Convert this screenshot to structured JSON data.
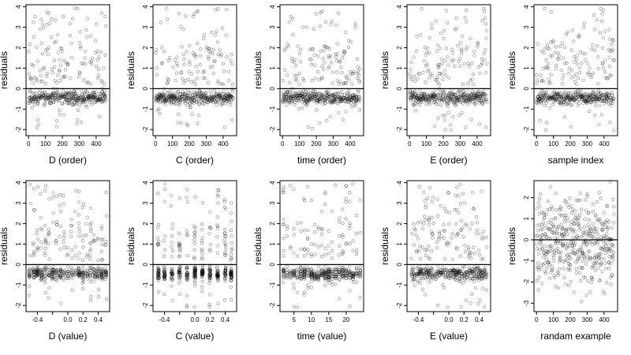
{
  "chart_data": [
    {
      "type": "scatter",
      "xlabel": "D (order)",
      "ylabel": "residuals",
      "xlim": [
        -15,
        480
      ],
      "ylim": [
        -2.3,
        4.1
      ],
      "xticks": [
        0,
        100,
        200,
        300,
        400
      ],
      "xtick_labels": [
        "0",
        "100",
        "200",
        "300",
        "400"
      ],
      "yticks": [
        -2,
        -1,
        0,
        1,
        2,
        3,
        4
      ],
      "ytick_labels": [
        "-2",
        "-1",
        "0",
        "1",
        "2",
        "3",
        "4"
      ],
      "hline": 0,
      "n_points": 460,
      "seed": 11
    },
    {
      "type": "scatter",
      "xlabel": "C (order)",
      "ylabel": "residuals",
      "xlim": [
        -15,
        480
      ],
      "ylim": [
        -2.3,
        4.1
      ],
      "xticks": [
        0,
        100,
        200,
        300,
        400
      ],
      "xtick_labels": [
        "0",
        "100",
        "200",
        "300",
        "400"
      ],
      "yticks": [
        -2,
        -1,
        0,
        1,
        2,
        3,
        4
      ],
      "ytick_labels": [
        "-2",
        "-1",
        "0",
        "1",
        "2",
        "3",
        "4"
      ],
      "hline": 0,
      "n_points": 460,
      "seed": 23
    },
    {
      "type": "scatter",
      "xlabel": "time (order)",
      "ylabel": "residuals",
      "xlim": [
        -15,
        480
      ],
      "ylim": [
        -2.3,
        4.1
      ],
      "xticks": [
        0,
        100,
        200,
        300,
        400
      ],
      "xtick_labels": [
        "0",
        "100",
        "200",
        "300",
        "400"
      ],
      "yticks": [
        -2,
        -1,
        0,
        1,
        2,
        3,
        4
      ],
      "ytick_labels": [
        "-2",
        "-1",
        "0",
        "1",
        "2",
        "3",
        "4"
      ],
      "hline": 0,
      "n_points": 460,
      "seed": 37
    },
    {
      "type": "scatter",
      "xlabel": "E (order)",
      "ylabel": "residuals",
      "xlim": [
        -15,
        480
      ],
      "ylim": [
        -2.3,
        4.1
      ],
      "xticks": [
        0,
        100,
        200,
        300,
        400
      ],
      "xtick_labels": [
        "0",
        "100",
        "200",
        "300",
        "400"
      ],
      "yticks": [
        -2,
        -1,
        0,
        1,
        2,
        3,
        4
      ],
      "ytick_labels": [
        "-2",
        "-1",
        "0",
        "1",
        "2",
        "3",
        "4"
      ],
      "hline": 0,
      "n_points": 460,
      "seed": 41
    },
    {
      "type": "scatter",
      "xlabel": "sample index",
      "ylabel": "residuals",
      "xlim": [
        -15,
        480
      ],
      "ylim": [
        -2.3,
        4.1
      ],
      "xticks": [
        0,
        100,
        200,
        300,
        400
      ],
      "xtick_labels": [
        "0",
        "100",
        "200",
        "300",
        "400"
      ],
      "yticks": [
        -2,
        -1,
        0,
        1,
        2,
        3,
        4
      ],
      "ytick_labels": [
        "-2",
        "-1",
        "0",
        "1",
        "2",
        "3",
        "4"
      ],
      "hline": 0,
      "n_points": 460,
      "seed": 53
    },
    {
      "type": "scatter",
      "xlabel": "D (value)",
      "ylabel": "residuals",
      "xlim": [
        -0.55,
        0.55
      ],
      "ylim": [
        -2.3,
        4.1
      ],
      "xticks": [
        -0.4,
        -0.2,
        0.0,
        0.2,
        0.4
      ],
      "xtick_labels": [
        "-0.4",
        "",
        "0.0",
        "0.2",
        "0.4"
      ],
      "yticks": [
        -2,
        -1,
        0,
        1,
        2,
        3,
        4
      ],
      "ytick_labels": [
        "-2",
        "-1",
        "0",
        "1",
        "2",
        "3",
        "4"
      ],
      "hline": 0,
      "n_points": 460,
      "seed": 61
    },
    {
      "type": "scatter",
      "xlabel": "C (value)",
      "ylabel": "residuals",
      "xlim": [
        -0.55,
        0.55
      ],
      "ylim": [
        -2.3,
        4.1
      ],
      "xticks": [
        -0.4,
        -0.2,
        0.0,
        0.2,
        0.4
      ],
      "xtick_labels": [
        "-0.4",
        "",
        "0.0",
        "0.2",
        "0.4"
      ],
      "yticks": [
        -2,
        -1,
        0,
        1,
        2,
        3,
        4
      ],
      "ytick_labels": [
        "-2",
        "-1",
        "0",
        "1",
        "2",
        "3",
        "4"
      ],
      "hline": 0,
      "n_points": 460,
      "seed": 71
    },
    {
      "type": "scatter",
      "xlabel": "time (value)",
      "ylabel": "residuals",
      "xlim": [
        1,
        25
      ],
      "ylim": [
        -2.3,
        4.1
      ],
      "xticks": [
        5,
        10,
        15,
        20
      ],
      "xtick_labels": [
        "5",
        "10",
        "15",
        "20"
      ],
      "yticks": [
        -2,
        -1,
        0,
        1,
        2,
        3,
        4
      ],
      "ytick_labels": [
        "-2",
        "-1",
        "0",
        "1",
        "2",
        "3",
        "4"
      ],
      "hline": 0,
      "n_points": 460,
      "seed": 83
    },
    {
      "type": "scatter",
      "xlabel": "E (value)",
      "ylabel": "residuals",
      "xlim": [
        -0.55,
        0.55
      ],
      "ylim": [
        -2.3,
        4.1
      ],
      "xticks": [
        -0.4,
        -0.2,
        0.0,
        0.2,
        0.4
      ],
      "xtick_labels": [
        "-0.4",
        "",
        "0.0",
        "0.2",
        "0.4"
      ],
      "yticks": [
        -2,
        -1,
        0,
        1,
        2,
        3,
        4
      ],
      "ytick_labels": [
        "-2",
        "-1",
        "0",
        "1",
        "2",
        "3",
        "4"
      ],
      "hline": 0,
      "n_points": 460,
      "seed": 97
    },
    {
      "type": "scatter",
      "xlabel": "randam example",
      "ylabel": "residuals",
      "xlim": [
        -15,
        480
      ],
      "ylim": [
        -3.4,
        2.8
      ],
      "xticks": [
        0,
        100,
        200,
        300,
        400
      ],
      "xtick_labels": [
        "0",
        "100",
        "200",
        "300",
        "400"
      ],
      "yticks": [
        -3,
        -2,
        -1,
        0,
        1,
        2
      ],
      "ytick_labels": [
        "-3",
        "-2",
        "-1",
        "0",
        "1",
        "2"
      ],
      "hline": 0,
      "n_points": 460,
      "seed": 101
    }
  ]
}
